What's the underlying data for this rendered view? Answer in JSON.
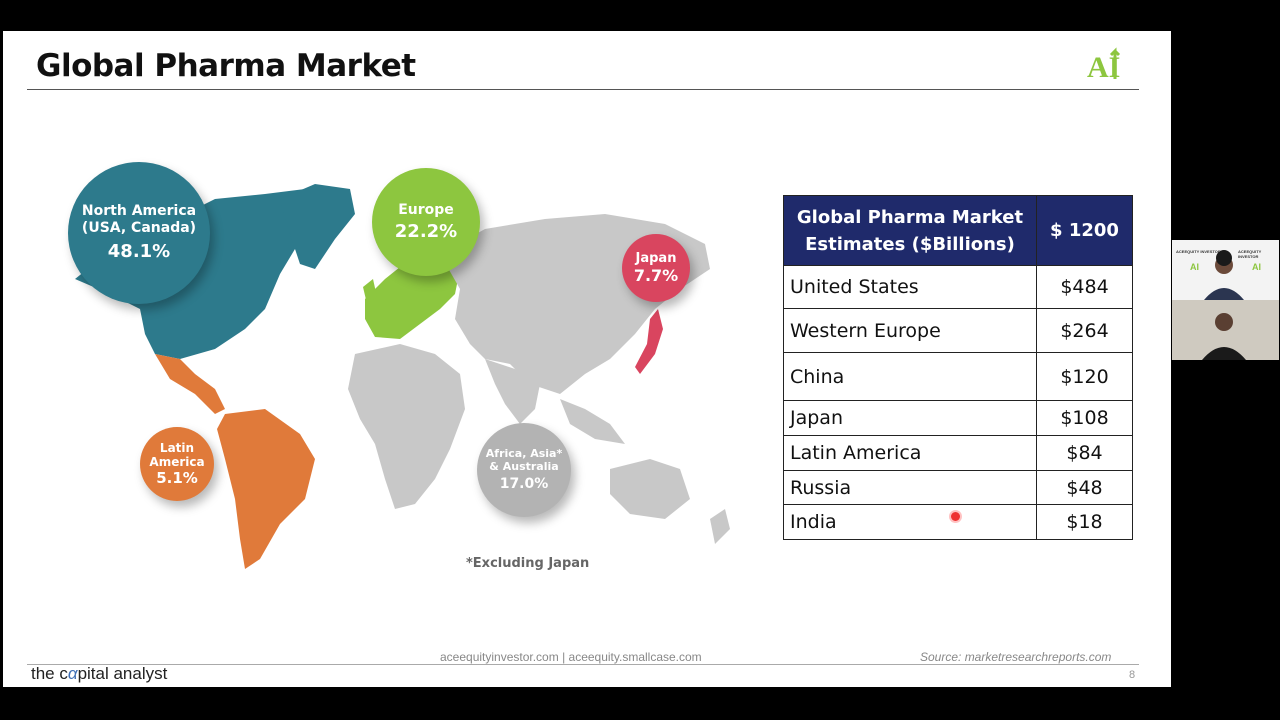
{
  "slide": {
    "title": "Global Pharma Market",
    "logo_text": "AI",
    "footnote": "*Excluding Japan",
    "footer_links": "aceequityinvestor.com | aceequity.smallcase.com",
    "footer_source": "Source: marketresearchreports.com",
    "brand_pre": "the c",
    "brand_alpha": "α",
    "brand_post": "pital analyst",
    "page_number": "8"
  },
  "regions": [
    {
      "line1": "North America",
      "line2": "(USA, Canada)",
      "pct": "48.1%",
      "color": "#2d7a8c"
    },
    {
      "line1": "Europe",
      "pct": "22.2%",
      "color": "#8dc63f"
    },
    {
      "line1": "Japan",
      "pct": "7.7%",
      "color": "#d9455f"
    },
    {
      "line1": "Latin",
      "line2": "America",
      "pct": "5.1%",
      "color": "#e07a3a"
    },
    {
      "line1": "Africa, Asia*",
      "line2": "& Australia",
      "pct": "17.0%",
      "color": "#b3b3b3"
    }
  ],
  "table": {
    "header_label": "Global Pharma Market Estimates ($Billions)",
    "header_value": "$ 1200",
    "rows": [
      {
        "label": "United States",
        "value": "$484"
      },
      {
        "label": "Western Europe",
        "value": "$264"
      },
      {
        "label": "China",
        "value": "$120"
      },
      {
        "label": "Japan",
        "value": "$108"
      },
      {
        "label": "Latin America",
        "value": "$84"
      },
      {
        "label": "Russia",
        "value": "$48"
      },
      {
        "label": "India",
        "value": "$18"
      }
    ]
  },
  "webcam": {
    "banner_text": "ACEEQUITY INVESTOR",
    "logo_text": "AI"
  },
  "colors": {
    "header_navy": "#1f2a6b",
    "map_gray": "#c8c8c8"
  }
}
